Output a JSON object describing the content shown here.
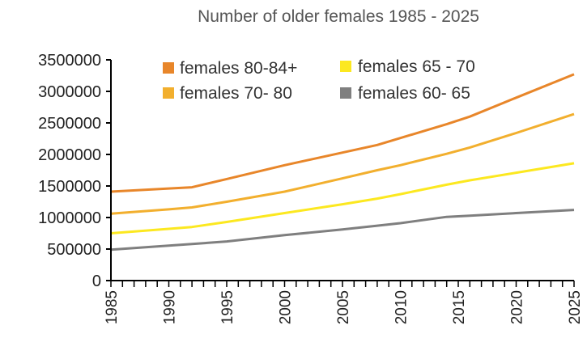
{
  "chart_data": {
    "type": "line",
    "title": "Number of older females 1985 - 2025",
    "xlabel": "",
    "ylabel": "",
    "x": [
      1985,
      1990,
      1992,
      1995,
      2000,
      2005,
      2008,
      2010,
      2014,
      2016,
      2020,
      2025
    ],
    "x_ticks": [
      "1985",
      "1990",
      "1995",
      "2000",
      "2005",
      "2010",
      "2015",
      "2020",
      "2025"
    ],
    "y_ticks": [
      "0",
      "500000",
      "1000000",
      "1500000",
      "2000000",
      "2500000",
      "3000000",
      "3500000"
    ],
    "xlim": [
      1985,
      2025
    ],
    "ylim": [
      0,
      3500000
    ],
    "grid": false,
    "legend_position": "top",
    "series": [
      {
        "name": "females 80-84+",
        "color": "#E8862A",
        "values": [
          1410000,
          1460000,
          1480000,
          1610000,
          1830000,
          2030000,
          2150000,
          2260000,
          2480000,
          2600000,
          2900000,
          3270000
        ]
      },
      {
        "name": "females 70- 80",
        "color": "#F2AF2E",
        "values": [
          1060000,
          1130000,
          1160000,
          1250000,
          1410000,
          1620000,
          1750000,
          1830000,
          2010000,
          2110000,
          2340000,
          2640000
        ]
      },
      {
        "name": "females 65 - 70",
        "color": "#FCE820",
        "values": [
          750000,
          820000,
          850000,
          930000,
          1070000,
          1210000,
          1300000,
          1370000,
          1520000,
          1590000,
          1710000,
          1860000
        ]
      },
      {
        "name": "females 60- 65",
        "color": "#7F7F7F",
        "values": [
          490000,
          555000,
          580000,
          620000,
          720000,
          810000,
          870000,
          910000,
          1010000,
          1030000,
          1070000,
          1120000
        ]
      }
    ]
  }
}
